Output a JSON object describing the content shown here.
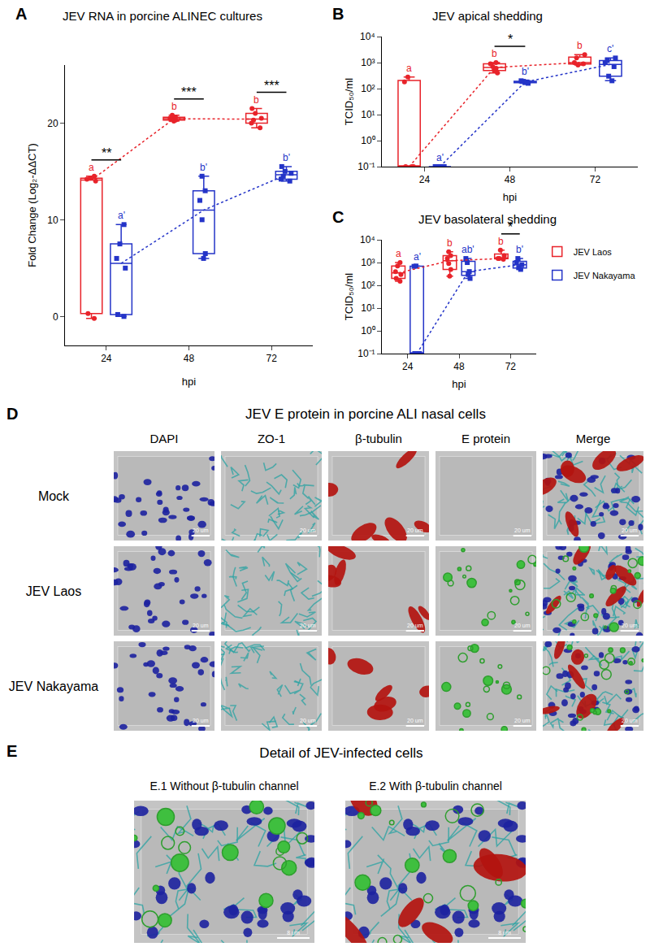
{
  "chart_data": [
    {
      "type": "box",
      "panel": "A",
      "title": "JEV RNA in porcine ALINEC cultures",
      "x_label": "hpi",
      "y_label": "Fold Change (Log₂-ΔΔCT)",
      "categories": [
        "24",
        "48",
        "72"
      ],
      "ylim": [
        -3,
        26
      ],
      "yticks": [
        0,
        10,
        20
      ],
      "grid": false,
      "series": [
        {
          "name": "JEV Laos",
          "color": "#e8232a",
          "marker": "circle",
          "values": [
            [
              14.5,
              14.3,
              14.0,
              14.2,
              0.3,
              -0.2
            ],
            [
              20.5,
              20.3,
              20.8,
              20.2,
              20.6,
              20.4
            ],
            [
              21.5,
              20.0,
              20.5,
              19.5,
              21.0,
              20.3
            ]
          ],
          "annotations": [
            "a",
            "b",
            "b"
          ]
        },
        {
          "name": "JEV Nakayama",
          "color": "#2434c8",
          "marker": "square",
          "values": [
            [
              9.5,
              7.5,
              6.0,
              5.0,
              0.0,
              0.2
            ],
            [
              14.5,
              13.0,
              12.0,
              10.0,
              6.5,
              6.0
            ],
            [
              15.5,
              15.0,
              14.5,
              14.8,
              14.0,
              14.2
            ]
          ],
          "annotations": [
            "a'",
            "b'",
            "b'"
          ]
        }
      ],
      "significance": [
        "**",
        "***",
        "***"
      ]
    },
    {
      "type": "box",
      "panel": "B",
      "title": "JEV apical shedding",
      "x_label": "hpi",
      "y_label": "TCID₅₀/ml",
      "categories": [
        "24",
        "48",
        "72"
      ],
      "log": "y",
      "ylim": [
        0.1,
        10000
      ],
      "yticks": [
        {
          "value": 0.1,
          "label": "10⁻¹"
        },
        {
          "value": 1,
          "label": "10⁰"
        },
        {
          "value": 10,
          "label": "10¹"
        },
        {
          "value": 100,
          "label": "10²"
        },
        {
          "value": 1000,
          "label": "10³"
        },
        {
          "value": 10000,
          "label": "10⁴"
        }
      ],
      "grid": false,
      "series": [
        {
          "name": "JEV Laos",
          "color": "#e8232a",
          "marker": "circle",
          "values": [
            [
              280,
              180,
              0.1,
              0.1,
              0.1
            ],
            [
              600,
              900,
              400,
              700,
              500,
              1000
            ],
            [
              1500,
              1000,
              800,
              2000,
              900
            ]
          ],
          "annotations": [
            "a",
            "b",
            "b"
          ]
        },
        {
          "name": "JEV Nakayama",
          "color": "#2434c8",
          "marker": "square",
          "values": [
            [
              0.1,
              0.1,
              0.1,
              0.1,
              0.1
            ],
            [
              180,
              170,
              160,
              190,
              200
            ],
            [
              1500,
              700,
              300,
              200,
              1000,
              1200
            ]
          ],
          "annotations": [
            "a'",
            "b'",
            "c'"
          ]
        }
      ],
      "significance": [
        null,
        "*",
        null
      ]
    },
    {
      "type": "box",
      "panel": "C",
      "title": "JEV basolateral shedding",
      "x_label": "hpi",
      "y_label": "TCID₅₀/ml",
      "categories": [
        "24",
        "48",
        "72"
      ],
      "log": "y",
      "ylim": [
        0.1,
        10000
      ],
      "yticks": [
        {
          "value": 0.1,
          "label": "10⁻¹"
        },
        {
          "value": 1,
          "label": "10⁰"
        },
        {
          "value": 10,
          "label": "10¹"
        },
        {
          "value": 100,
          "label": "10²"
        },
        {
          "value": 1000,
          "label": "10³"
        },
        {
          "value": 10000,
          "label": "10⁴"
        }
      ],
      "grid": false,
      "legend": "right",
      "series": [
        {
          "name": "JEV Laos",
          "color": "#e8232a",
          "marker": "circle",
          "values": [
            [
              1000,
              700,
              400,
              200,
              150,
              300
            ],
            [
              3000,
              2000,
              900,
              500,
              250,
              1500
            ],
            [
              3500,
              2000,
              1500,
              1400,
              1500
            ]
          ],
          "annotations": [
            "a",
            "b",
            "b"
          ]
        },
        {
          "name": "JEV Nakayama",
          "color": "#2434c8",
          "marker": "square",
          "values": [
            [
              700,
              680,
              0.1,
              0.1,
              0.1
            ],
            [
              1500,
              1000,
              300,
              200,
              400
            ],
            [
              1500,
              800,
              600,
              500,
              1000
            ]
          ],
          "annotations": [
            "a'",
            "ab'",
            "b'"
          ]
        }
      ],
      "significance": [
        null,
        null,
        "*"
      ]
    }
  ],
  "image_panels": {
    "D": {
      "panel": "D",
      "title": "JEV E protein in porcine ALI nasal cells",
      "columns": [
        "DAPI",
        "ZO-1",
        "β-tubulin",
        "E protein",
        "Merge"
      ],
      "rows": [
        {
          "label": "Mock",
          "signal": [
            true,
            true,
            true,
            false,
            true
          ]
        },
        {
          "label": "JEV Laos",
          "signal": [
            true,
            true,
            true,
            true,
            true
          ]
        },
        {
          "label": "JEV Nakayama",
          "signal": [
            true,
            true,
            true,
            true,
            true
          ]
        }
      ],
      "scale_bar": "20 um"
    },
    "E": {
      "panel": "E",
      "title": "Detail of JEV-infected cells",
      "images": [
        {
          "label": "E.1 Without β-tubulin channel",
          "channels": [
            "DAPI",
            "ZO-1",
            "E protein"
          ]
        },
        {
          "label": "E.2 With β-tubulin channel",
          "channels": [
            "DAPI",
            "ZO-1",
            "E protein",
            "β-tubulin"
          ]
        }
      ],
      "scale_bar": "8 um"
    }
  }
}
